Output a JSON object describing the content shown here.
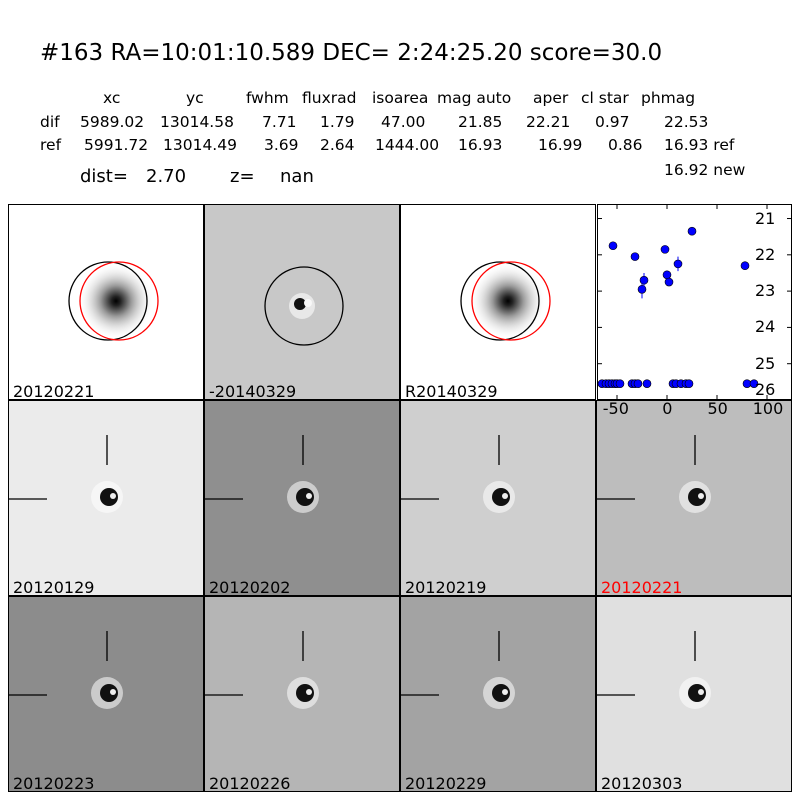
{
  "header": {
    "title": "#163   RA=10:01:10.589 DEC= 2:24:25.20       score=30.0",
    "columns": [
      "xc",
      "yc",
      "fwhm",
      "fluxrad",
      "isoarea",
      "mag auto",
      "aper",
      "cl star",
      "phmag"
    ],
    "rows": [
      {
        "name": "dif",
        "values": [
          "5989.02",
          "13014.58",
          "7.71",
          "1.79",
          "47.00",
          "21.85",
          "22.21",
          "0.97",
          "22.53"
        ]
      },
      {
        "name": "ref",
        "values": [
          "5991.72",
          "13014.49",
          "3.69",
          "2.64",
          "1444.00",
          "16.93",
          "16.99",
          "0.86",
          "16.93 ref"
        ]
      }
    ],
    "phmag_new": "16.92 new",
    "dist_label": "dist=",
    "dist_value": "2.70",
    "z_label": "z=",
    "z_value": "nan"
  },
  "top_panels": [
    {
      "label": "20120221",
      "bg": "#ffffff",
      "style": "blob"
    },
    {
      "label": "-20140329",
      "bg": "#c8c8c8",
      "style": "dipole"
    },
    {
      "label": "R20140329",
      "bg": "#ffffff",
      "style": "blob"
    }
  ],
  "grid_panels": [
    {
      "label": "20120129",
      "bg": "#ebebeb",
      "label_color": "#000000"
    },
    {
      "label": "20120202",
      "bg": "#8f8f8f",
      "label_color": "#000000"
    },
    {
      "label": "20120219",
      "bg": "#cfcfcf",
      "label_color": "#000000"
    },
    {
      "label": "20120221",
      "bg": "#bdbdbd",
      "label_color": "#ff0000"
    },
    {
      "label": "20120223",
      "bg": "#8c8c8c",
      "label_color": "#000000"
    },
    {
      "label": "20120226",
      "bg": "#b5b5b5",
      "label_color": "#000000"
    },
    {
      "label": "20120229",
      "bg": "#a3a3a3",
      "label_color": "#000000"
    },
    {
      "label": "20120303",
      "bg": "#e0e0e0",
      "label_color": "#000000"
    }
  ],
  "chart_data": {
    "type": "scatter",
    "xlim": [
      -70,
      125
    ],
    "ylim": [
      26,
      20.6
    ],
    "y_inverted": true,
    "xticks": [
      -50,
      0,
      50,
      100
    ],
    "yticks": [
      21,
      22,
      23,
      24,
      25,
      26
    ],
    "marker_color": "#0000ff",
    "points": [
      {
        "x": -65,
        "y": 25.55
      },
      {
        "x": -61,
        "y": 25.55
      },
      {
        "x": -58,
        "y": 25.55
      },
      {
        "x": -55,
        "y": 25.55
      },
      {
        "x": -52,
        "y": 25.55
      },
      {
        "x": -50,
        "y": 25.55
      },
      {
        "x": -47,
        "y": 25.55
      },
      {
        "x": -54,
        "y": 21.75
      },
      {
        "x": -35,
        "y": 25.55
      },
      {
        "x": -32,
        "y": 25.55
      },
      {
        "x": -29,
        "y": 25.55
      },
      {
        "x": -20,
        "y": 25.55
      },
      {
        "x": -32,
        "y": 22.05
      },
      {
        "x": -25,
        "y": 22.95,
        "err": 0.25
      },
      {
        "x": -23,
        "y": 22.7,
        "err": 0.2
      },
      {
        "x": -2,
        "y": 21.85
      },
      {
        "x": 0,
        "y": 22.55
      },
      {
        "x": 2,
        "y": 22.75
      },
      {
        "x": 6,
        "y": 25.55
      },
      {
        "x": 9,
        "y": 25.55
      },
      {
        "x": 11,
        "y": 22.25,
        "err": 0.2
      },
      {
        "x": 14,
        "y": 25.55
      },
      {
        "x": 19,
        "y": 25.55
      },
      {
        "x": 22,
        "y": 25.55
      },
      {
        "x": 25,
        "y": 21.35
      },
      {
        "x": 78,
        "y": 22.3,
        "err": 0.12
      },
      {
        "x": 80,
        "y": 25.55
      },
      {
        "x": 87,
        "y": 25.55
      }
    ]
  }
}
